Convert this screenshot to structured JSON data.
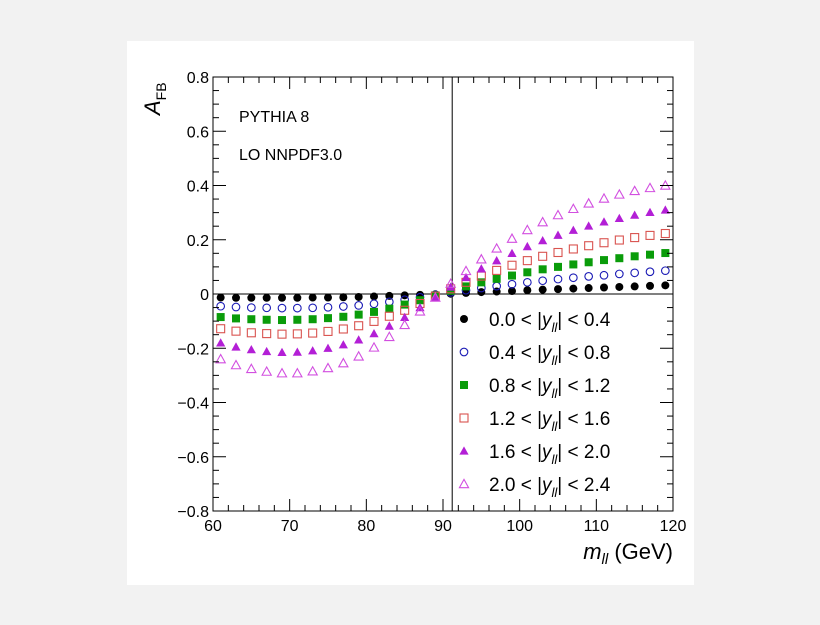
{
  "chart_data": {
    "type": "scatter",
    "xlim": [
      60,
      120
    ],
    "ylim": [
      -0.8,
      0.8
    ],
    "x_ticks": [
      "60",
      "70",
      "80",
      "90",
      "100",
      "110",
      "120"
    ],
    "y_ticks": [
      "−0.8",
      "−0.6",
      "−0.4",
      "−0.2",
      "0",
      "0.2",
      "0.4",
      "0.6",
      "0.8"
    ],
    "ylabel": "A",
    "ylabel_sub": "FB",
    "xlabel": "m",
    "xlabel_sub": "ll",
    "xlabel_unit": " (GeV)",
    "annotations": [
      "PYTHIA 8",
      "LO NNPDF3.0"
    ],
    "vertical_line_x": 91.2,
    "horizontal_line_y": 0,
    "legend_position": "bottom-right",
    "x": [
      61,
      63,
      65,
      67,
      69,
      71,
      73,
      75,
      77,
      79,
      81,
      83,
      85,
      87,
      89,
      91,
      93,
      95,
      97,
      99,
      101,
      103,
      105,
      107,
      109,
      111,
      113,
      115,
      117,
      119
    ],
    "series": [
      {
        "range_lo": "0.0",
        "range_hi": "0.4",
        "marker": "circle-filled",
        "color": "#000000",
        "values": [
          -0.013,
          -0.014,
          -0.014,
          -0.014,
          -0.014,
          -0.014,
          -0.013,
          -0.013,
          -0.012,
          -0.011,
          -0.009,
          -0.007,
          -0.005,
          -0.003,
          -0.001,
          0.001,
          0.004,
          0.007,
          0.009,
          0.011,
          0.014,
          0.016,
          0.018,
          0.02,
          0.022,
          0.024,
          0.026,
          0.028,
          0.03,
          0.032
        ]
      },
      {
        "range_lo": "0.4",
        "range_hi": "0.8",
        "marker": "circle-open",
        "color": "#1b1bb5",
        "values": [
          -0.045,
          -0.048,
          -0.05,
          -0.051,
          -0.052,
          -0.052,
          -0.051,
          -0.049,
          -0.046,
          -0.042,
          -0.036,
          -0.029,
          -0.021,
          -0.012,
          -0.003,
          0.006,
          0.014,
          0.022,
          0.029,
          0.036,
          0.043,
          0.049,
          0.055,
          0.06,
          0.065,
          0.069,
          0.074,
          0.078,
          0.082,
          0.086
        ]
      },
      {
        "range_lo": "0.8",
        "range_hi": "1.2",
        "marker": "square-filled",
        "color": "#0a9c0a",
        "values": [
          -0.085,
          -0.09,
          -0.093,
          -0.095,
          -0.096,
          -0.095,
          -0.093,
          -0.089,
          -0.084,
          -0.076,
          -0.066,
          -0.054,
          -0.039,
          -0.023,
          -0.005,
          0.012,
          0.028,
          0.043,
          0.056,
          0.068,
          0.08,
          0.091,
          0.1,
          0.109,
          0.117,
          0.125,
          0.132,
          0.139,
          0.145,
          0.151
        ]
      },
      {
        "range_lo": "1.2",
        "range_hi": "1.6",
        "marker": "square-open",
        "color": "#d9534f",
        "values": [
          -0.128,
          -0.137,
          -0.143,
          -0.146,
          -0.148,
          -0.147,
          -0.144,
          -0.138,
          -0.129,
          -0.117,
          -0.101,
          -0.082,
          -0.06,
          -0.035,
          -0.008,
          0.019,
          0.043,
          0.066,
          0.087,
          0.106,
          0.123,
          0.139,
          0.153,
          0.166,
          0.178,
          0.189,
          0.199,
          0.208,
          0.216,
          0.223
        ]
      },
      {
        "range_lo": "1.6",
        "range_hi": "2.0",
        "marker": "triangle-filled",
        "color": "#b31fd6",
        "values": [
          -0.18,
          -0.195,
          -0.205,
          -0.212,
          -0.215,
          -0.214,
          -0.209,
          -0.2,
          -0.187,
          -0.169,
          -0.146,
          -0.118,
          -0.086,
          -0.05,
          -0.012,
          0.026,
          0.061,
          0.093,
          0.123,
          0.15,
          0.175,
          0.197,
          0.217,
          0.235,
          0.251,
          0.266,
          0.279,
          0.291,
          0.301,
          0.31
        ]
      },
      {
        "range_lo": "2.0",
        "range_hi": "2.4",
        "marker": "triangle-open",
        "color": "#d24fe0",
        "values": [
          -0.24,
          -0.262,
          -0.276,
          -0.286,
          -0.292,
          -0.292,
          -0.285,
          -0.273,
          -0.255,
          -0.23,
          -0.197,
          -0.158,
          -0.114,
          -0.064,
          -0.013,
          0.038,
          0.085,
          0.128,
          0.168,
          0.204,
          0.236,
          0.265,
          0.291,
          0.314,
          0.334,
          0.352,
          0.367,
          0.38,
          0.391,
          0.4
        ]
      }
    ]
  }
}
